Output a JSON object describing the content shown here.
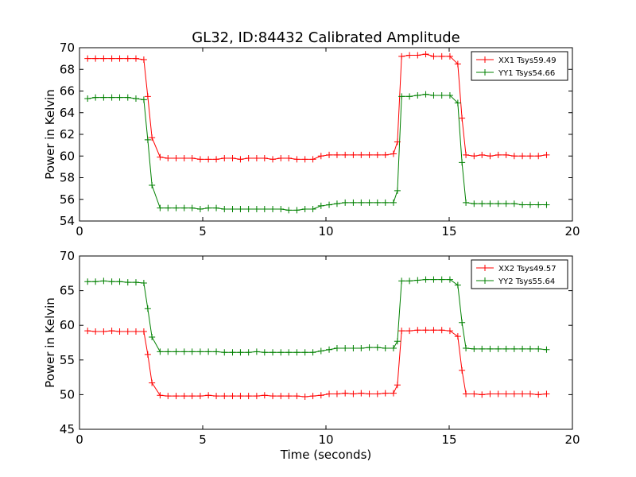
{
  "title": "GL32, ID:84432 Calibrated Amplitude",
  "chart_data": [
    {
      "type": "line",
      "title": "GL32, ID:84432 Calibrated Amplitude",
      "xlabel": "",
      "ylabel": "Power in Kelvin",
      "xlim": [
        0,
        20
      ],
      "ylim": [
        54,
        70
      ],
      "xticks": [
        0,
        5,
        10,
        15,
        20
      ],
      "yticks": [
        54,
        56,
        58,
        60,
        62,
        64,
        66,
        68,
        70
      ],
      "grid": false,
      "legend_position": "top-right",
      "x": [
        0.33,
        0.65,
        0.98,
        1.31,
        1.63,
        1.96,
        2.29,
        2.61,
        2.77,
        2.94,
        3.27,
        3.59,
        3.92,
        4.25,
        4.57,
        4.9,
        5.23,
        5.55,
        5.88,
        6.21,
        6.53,
        6.86,
        7.19,
        7.51,
        7.84,
        8.17,
        8.49,
        8.82,
        9.15,
        9.47,
        9.8,
        10.13,
        10.45,
        10.78,
        11.11,
        11.43,
        11.76,
        12.09,
        12.41,
        12.74,
        12.9,
        13.07,
        13.39,
        13.72,
        14.05,
        14.37,
        14.7,
        15.03,
        15.35,
        15.52,
        15.68,
        16.01,
        16.33,
        16.66,
        16.99,
        17.31,
        17.64,
        17.97,
        18.29,
        18.62,
        18.95
      ],
      "series": [
        {
          "name": "XX1 Tsys59.49",
          "color": "#ff0000",
          "values": [
            69.0,
            69.0,
            69.0,
            69.0,
            69.0,
            69.0,
            69.0,
            68.9,
            65.5,
            61.7,
            59.9,
            59.8,
            59.8,
            59.8,
            59.8,
            59.7,
            59.7,
            59.7,
            59.8,
            59.8,
            59.7,
            59.8,
            59.8,
            59.8,
            59.7,
            59.8,
            59.8,
            59.7,
            59.7,
            59.7,
            60.0,
            60.1,
            60.1,
            60.1,
            60.1,
            60.1,
            60.1,
            60.1,
            60.1,
            60.2,
            61.3,
            69.2,
            69.3,
            69.3,
            69.4,
            69.2,
            69.2,
            69.2,
            68.5,
            63.5,
            60.1,
            60.0,
            60.1,
            60.0,
            60.1,
            60.1,
            60.0,
            60.0,
            60.0,
            60.0,
            60.1
          ]
        },
        {
          "name": "YY1 Tsys54.66",
          "color": "#008000",
          "values": [
            65.3,
            65.4,
            65.4,
            65.4,
            65.4,
            65.4,
            65.3,
            65.2,
            61.5,
            57.3,
            55.2,
            55.2,
            55.2,
            55.2,
            55.2,
            55.1,
            55.2,
            55.2,
            55.1,
            55.1,
            55.1,
            55.1,
            55.1,
            55.1,
            55.1,
            55.1,
            55.0,
            55.0,
            55.1,
            55.1,
            55.4,
            55.5,
            55.6,
            55.7,
            55.7,
            55.7,
            55.7,
            55.7,
            55.7,
            55.7,
            56.8,
            65.5,
            65.5,
            65.6,
            65.7,
            65.6,
            65.6,
            65.6,
            64.9,
            59.4,
            55.7,
            55.6,
            55.6,
            55.6,
            55.6,
            55.6,
            55.6,
            55.5,
            55.5,
            55.5,
            55.5
          ]
        }
      ]
    },
    {
      "type": "line",
      "title": "",
      "xlabel": "Time (seconds)",
      "ylabel": "Power in Kelvin",
      "xlim": [
        0,
        20
      ],
      "ylim": [
        45,
        70
      ],
      "xticks": [
        0,
        5,
        10,
        15,
        20
      ],
      "yticks": [
        45,
        50,
        55,
        60,
        65,
        70
      ],
      "grid": false,
      "legend_position": "top-right",
      "x": [
        0.33,
        0.65,
        0.98,
        1.31,
        1.63,
        1.96,
        2.29,
        2.61,
        2.77,
        2.94,
        3.27,
        3.59,
        3.92,
        4.25,
        4.57,
        4.9,
        5.23,
        5.55,
        5.88,
        6.21,
        6.53,
        6.86,
        7.19,
        7.51,
        7.84,
        8.17,
        8.49,
        8.82,
        9.15,
        9.47,
        9.8,
        10.13,
        10.45,
        10.78,
        11.11,
        11.43,
        11.76,
        12.09,
        12.41,
        12.74,
        12.9,
        13.07,
        13.39,
        13.72,
        14.05,
        14.37,
        14.7,
        15.03,
        15.35,
        15.52,
        15.68,
        16.01,
        16.33,
        16.66,
        16.99,
        17.31,
        17.64,
        17.97,
        18.29,
        18.62,
        18.95
      ],
      "series": [
        {
          "name": "XX2 Tsys49.57",
          "color": "#ff0000",
          "values": [
            59.2,
            59.1,
            59.1,
            59.2,
            59.1,
            59.1,
            59.1,
            59.1,
            55.8,
            51.7,
            49.9,
            49.8,
            49.8,
            49.8,
            49.8,
            49.8,
            49.9,
            49.8,
            49.8,
            49.8,
            49.8,
            49.8,
            49.8,
            49.9,
            49.8,
            49.8,
            49.8,
            49.8,
            49.7,
            49.8,
            49.9,
            50.1,
            50.1,
            50.2,
            50.1,
            50.2,
            50.1,
            50.1,
            50.2,
            50.2,
            51.4,
            59.2,
            59.2,
            59.3,
            59.3,
            59.3,
            59.3,
            59.2,
            58.4,
            53.5,
            50.1,
            50.1,
            50.0,
            50.1,
            50.1,
            50.1,
            50.1,
            50.1,
            50.1,
            50.0,
            50.1
          ]
        },
        {
          "name": "YY2 Tsys55.64",
          "color": "#008000",
          "values": [
            66.3,
            66.3,
            66.4,
            66.3,
            66.3,
            66.2,
            66.2,
            66.1,
            62.4,
            58.3,
            56.2,
            56.2,
            56.2,
            56.2,
            56.2,
            56.2,
            56.2,
            56.2,
            56.1,
            56.1,
            56.1,
            56.1,
            56.2,
            56.1,
            56.1,
            56.1,
            56.1,
            56.1,
            56.1,
            56.1,
            56.3,
            56.5,
            56.7,
            56.7,
            56.7,
            56.7,
            56.8,
            56.8,
            56.7,
            56.7,
            57.7,
            66.4,
            66.4,
            66.5,
            66.6,
            66.6,
            66.6,
            66.6,
            65.8,
            60.4,
            56.7,
            56.6,
            56.6,
            56.6,
            56.6,
            56.6,
            56.6,
            56.6,
            56.6,
            56.6,
            56.5
          ]
        }
      ]
    }
  ]
}
